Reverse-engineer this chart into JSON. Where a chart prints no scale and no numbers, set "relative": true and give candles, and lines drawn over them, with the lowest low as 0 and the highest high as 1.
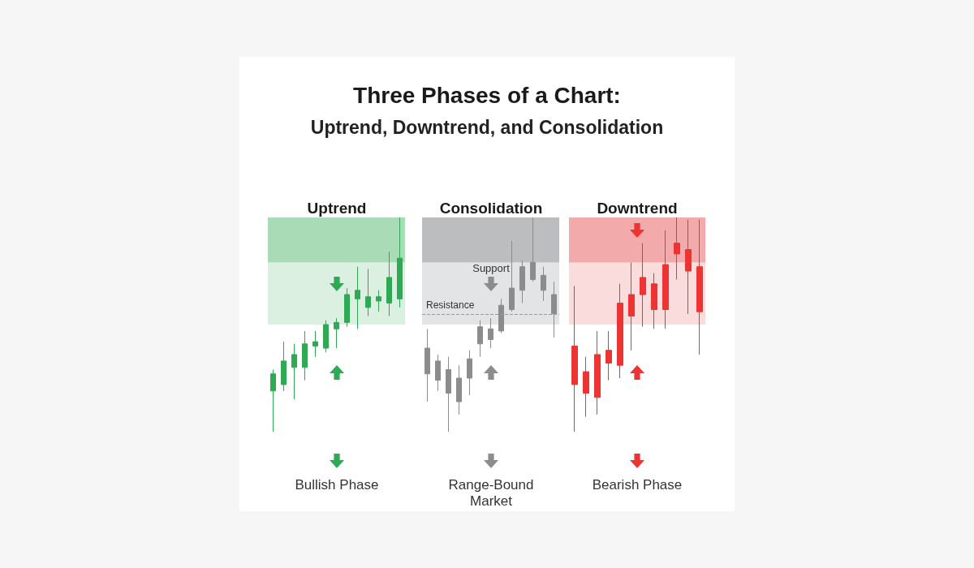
{
  "chart_data": [
    {
      "type": "other",
      "title": "Three Phases of a Chart:",
      "subtitle": "Uptrend, Downtrend, and Consolidation"
    },
    {
      "type": "candlestick",
      "title": "Uptrend",
      "relative": true,
      "color": "#2eaa55",
      "categories": [
        null,
        null,
        null,
        null,
        null,
        null,
        null,
        null,
        null,
        null,
        null,
        null,
        null
      ],
      "ohlc": [
        [
          0.19,
          0.29,
          0,
          0.27
        ],
        [
          0.22,
          0.42,
          0.19,
          0.33
        ],
        [
          0.3,
          0.41,
          0.15,
          0.36
        ],
        [
          0.3,
          0.47,
          0.24,
          0.41
        ],
        [
          0.4,
          0.47,
          0.35,
          0.42
        ],
        [
          0.39,
          0.52,
          0.37,
          0.5
        ],
        [
          0.48,
          0.53,
          0.39,
          0.51
        ],
        [
          0.51,
          0.67,
          0.49,
          0.64
        ],
        [
          0.62,
          0.77,
          0.48,
          0.66
        ],
        [
          0.58,
          0.76,
          0.54,
          0.63
        ],
        [
          0.61,
          0.66,
          0.56,
          0.63
        ],
        [
          0.6,
          0.84,
          0.54,
          0.72
        ],
        [
          0.62,
          1,
          0.58,
          0.81
        ]
      ],
      "bands": [
        {
          "axis": "y",
          "from": 0.5,
          "to": 0.79,
          "color": "#dcf0e1"
        },
        {
          "axis": "y",
          "from": 0.79,
          "to": 1,
          "color": "#a9dcb6"
        }
      ],
      "annotations": [
        "Bullish Phase"
      ]
    },
    {
      "type": "candlestick",
      "title": "Consolidation",
      "relative": true,
      "color": "#8c8c8c",
      "categories": [
        null,
        null,
        null,
        null,
        null,
        null,
        null,
        null,
        null,
        null,
        null,
        null,
        null
      ],
      "ohlc": [
        [
          0.27,
          0.48,
          0.14,
          0.39
        ],
        [
          0.24,
          0.36,
          0.19,
          0.33
        ],
        [
          0.18,
          0.35,
          0,
          0.29
        ],
        [
          0.14,
          0.31,
          0.08,
          0.25
        ],
        [
          0.25,
          0.38,
          0.17,
          0.34
        ],
        [
          0.41,
          0.52,
          0.35,
          0.49
        ],
        [
          0.43,
          0.53,
          0.39,
          0.48
        ],
        [
          0.47,
          0.62,
          0.46,
          0.59
        ],
        [
          0.57,
          0.89,
          0.56,
          0.67
        ],
        [
          0.66,
          0.8,
          0.6,
          0.77
        ],
        [
          0.71,
          1,
          0.7,
          0.79
        ],
        [
          0.66,
          0.77,
          0.61,
          0.73
        ],
        [
          0.55,
          0.7,
          0.44,
          0.64
        ]
      ],
      "bands": [
        {
          "axis": "y",
          "from": 0.5,
          "to": 0.79,
          "color": "#e3e4e6"
        },
        {
          "axis": "y",
          "from": 0.79,
          "to": 1,
          "color": "#bcbdbf"
        }
      ],
      "ref_lines": [
        {
          "axis": "y",
          "value": 0.55,
          "label": "Resistance",
          "color": "#9a9a9a",
          "line_style": "dashed"
        }
      ],
      "annotations": [
        "Support",
        "Range-Bound Market"
      ]
    },
    {
      "type": "candlestick",
      "title": "Downtrend",
      "relative": true,
      "color": "#ee3333",
      "categories": [
        null,
        null,
        null,
        null,
        null,
        null,
        null,
        null,
        null,
        null,
        null,
        null
      ],
      "ohlc": [
        [
          0.4,
          0.68,
          0,
          0.22
        ],
        [
          0.28,
          0.35,
          0.07,
          0.18
        ],
        [
          0.36,
          0.47,
          0.08,
          0.16
        ],
        [
          0.38,
          0.47,
          0.24,
          0.32
        ],
        [
          0.6,
          0.69,
          0.25,
          0.31
        ],
        [
          0.64,
          0.79,
          0.38,
          0.54
        ],
        [
          0.72,
          0.88,
          0.49,
          0.64
        ],
        [
          0.69,
          0.74,
          0.48,
          0.57
        ],
        [
          0.78,
          0.94,
          0.48,
          0.57
        ],
        [
          0.88,
          1,
          0.71,
          0.83
        ],
        [
          0.85,
          0.99,
          0.55,
          0.75
        ],
        [
          0.77,
          0.99,
          0.36,
          0.56
        ]
      ],
      "bands": [
        {
          "axis": "y",
          "from": 0.5,
          "to": 0.79,
          "color": "#fbdcdc"
        },
        {
          "axis": "y",
          "from": 0.79,
          "to": 1,
          "color": "#f3aaaa"
        }
      ],
      "annotations": [
        "Bearish Phase"
      ]
    }
  ]
}
